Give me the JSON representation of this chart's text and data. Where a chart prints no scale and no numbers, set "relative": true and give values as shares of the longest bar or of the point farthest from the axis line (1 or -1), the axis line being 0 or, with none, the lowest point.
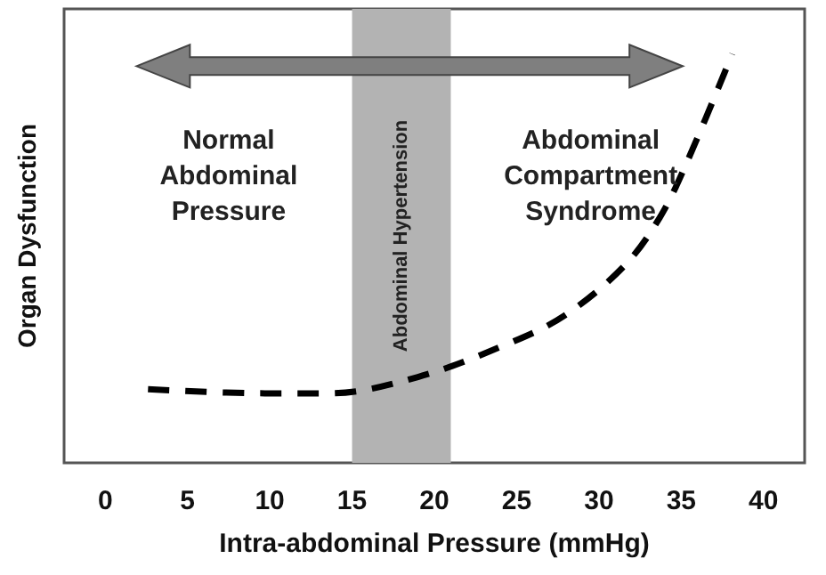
{
  "chart_data": {
    "type": "line",
    "relative": true,
    "xlabel": "Intra-abdominal Pressure (mmHg)",
    "ylabel": "Organ Dysfunction",
    "xlim": [
      -2.5,
      42.5
    ],
    "xticks": [
      0,
      5,
      10,
      15,
      20,
      25,
      30,
      35,
      40
    ],
    "tick_labels": "x",
    "line_style": "dashed",
    "series": [
      {
        "color": "#000000",
        "x": [
          2.6,
          9.7,
          13.6,
          19.0,
          24.4,
          27.9,
          31.5,
          33.7,
          35.4,
          38.1
        ],
        "values": [
          0.18,
          0.17,
          0.17,
          0.21,
          0.29,
          0.36,
          0.48,
          0.6,
          0.74,
          1
        ]
      }
    ],
    "bands": [
      {
        "axis": "x",
        "from": 15,
        "to": 21,
        "label": "Abdominal Hypertension",
        "color": "#b3b3b3"
      }
    ],
    "annotations": [
      "Normal\nAbdominal\nPressure",
      "Abdominal\nCompartment\nSyndrome"
    ]
  }
}
